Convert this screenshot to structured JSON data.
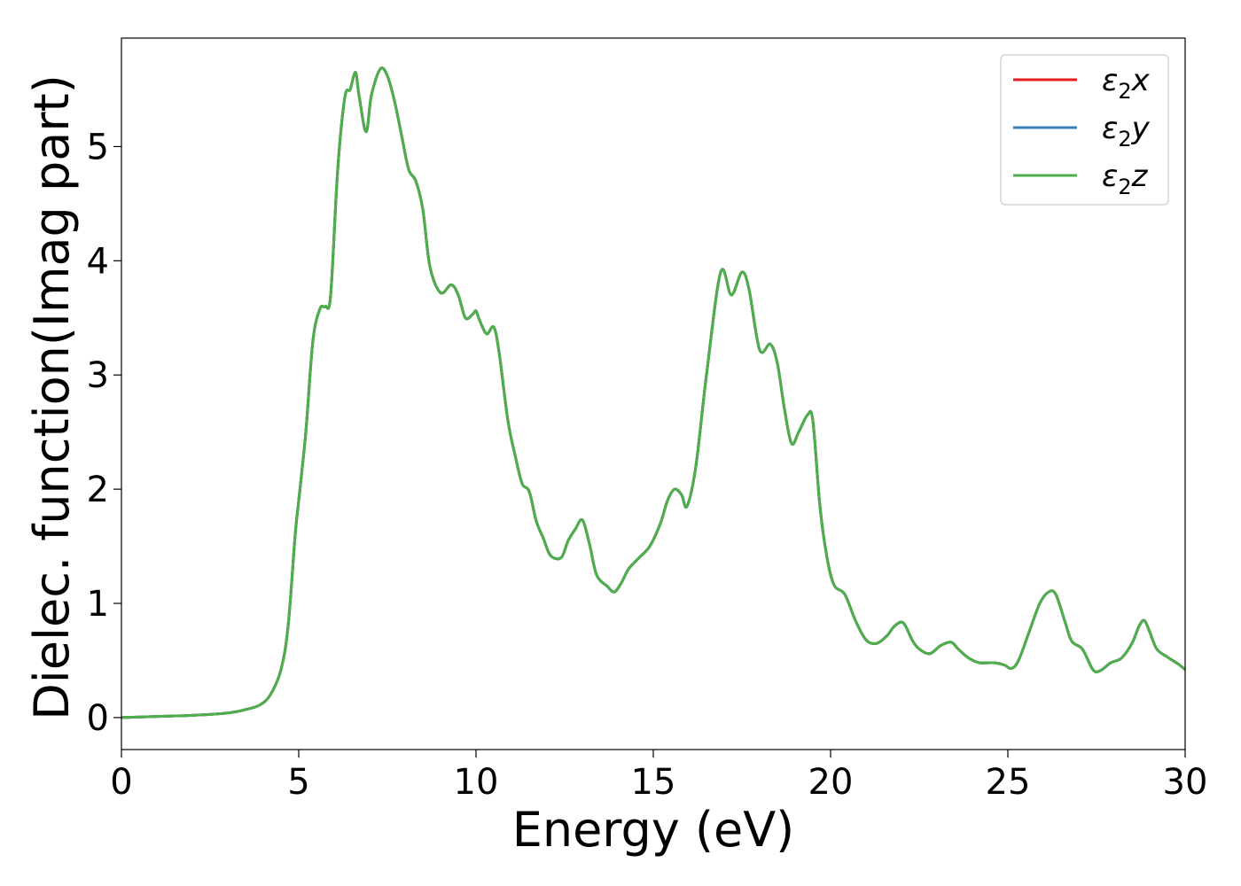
{
  "chart_data": {
    "type": "line",
    "title": "",
    "xlabel": "Energy (eV)",
    "ylabel": "Dielec. function(Imag part)",
    "xlim": [
      0,
      30
    ],
    "ylim": [
      -0.28,
      5.95
    ],
    "xticks": [
      0,
      5,
      10,
      15,
      20,
      25,
      30
    ],
    "yticks": [
      0,
      1,
      2,
      3,
      4,
      5
    ],
    "grid": false,
    "legend_position": "top-right",
    "x": [
      0,
      1,
      2,
      3,
      3.5,
      3.9,
      4.2,
      4.5,
      4.7,
      4.9,
      5.0,
      5.2,
      5.4,
      5.6,
      5.75,
      5.9,
      6.1,
      6.3,
      6.45,
      6.6,
      6.7,
      6.9,
      7.05,
      7.3,
      7.5,
      7.7,
      7.9,
      8.1,
      8.3,
      8.5,
      8.7,
      9.0,
      9.3,
      9.5,
      9.7,
      9.9,
      10.0,
      10.1,
      10.3,
      10.5,
      10.65,
      10.9,
      11.1,
      11.3,
      11.5,
      11.7,
      11.9,
      12.1,
      12.4,
      12.6,
      12.8,
      13.0,
      13.2,
      13.4,
      13.7,
      13.9,
      14.1,
      14.3,
      14.6,
      14.9,
      15.2,
      15.4,
      15.6,
      15.8,
      15.95,
      16.2,
      16.5,
      16.9,
      17.2,
      17.5,
      17.7,
      18.0,
      18.3,
      18.5,
      18.7,
      18.9,
      19.1,
      19.35,
      19.5,
      19.7,
      19.9,
      20.1,
      20.4,
      20.7,
      21.0,
      21.3,
      21.6,
      21.8,
      22.05,
      22.3,
      22.5,
      22.8,
      23.1,
      23.4,
      23.6,
      23.9,
      24.2,
      24.6,
      24.9,
      25.1,
      25.3,
      25.6,
      25.9,
      26.15,
      26.35,
      26.6,
      26.8,
      27.1,
      27.4,
      27.6,
      27.9,
      28.2,
      28.5,
      28.7,
      28.85,
      29.0,
      29.2,
      29.5,
      29.8,
      30.0
    ],
    "series": [
      {
        "name": "ε2x",
        "color": "#e41a1c",
        "values": [
          0,
          0.01,
          0.02,
          0.04,
          0.07,
          0.11,
          0.2,
          0.42,
          0.8,
          1.6,
          1.9,
          2.5,
          3.3,
          3.58,
          3.6,
          3.7,
          4.8,
          5.43,
          5.5,
          5.65,
          5.45,
          5.13,
          5.45,
          5.68,
          5.62,
          5.4,
          5.1,
          4.8,
          4.7,
          4.45,
          3.95,
          3.72,
          3.79,
          3.7,
          3.5,
          3.53,
          3.56,
          3.48,
          3.36,
          3.42,
          3.2,
          2.6,
          2.3,
          2.05,
          1.98,
          1.72,
          1.57,
          1.42,
          1.4,
          1.55,
          1.65,
          1.73,
          1.52,
          1.25,
          1.15,
          1.1,
          1.18,
          1.3,
          1.4,
          1.5,
          1.7,
          1.9,
          2.0,
          1.95,
          1.85,
          2.2,
          3.0,
          3.9,
          3.7,
          3.9,
          3.75,
          3.22,
          3.27,
          3.1,
          2.7,
          2.4,
          2.5,
          2.65,
          2.6,
          1.85,
          1.4,
          1.16,
          1.08,
          0.85,
          0.68,
          0.65,
          0.72,
          0.8,
          0.83,
          0.68,
          0.6,
          0.56,
          0.63,
          0.66,
          0.6,
          0.52,
          0.48,
          0.48,
          0.46,
          0.43,
          0.5,
          0.75,
          1.0,
          1.1,
          1.08,
          0.85,
          0.67,
          0.6,
          0.42,
          0.41,
          0.48,
          0.52,
          0.65,
          0.8,
          0.85,
          0.75,
          0.6,
          0.53,
          0.47,
          0.42
        ]
      },
      {
        "name": "ε2y",
        "color": "#377eb8",
        "values": [
          0,
          0.01,
          0.02,
          0.04,
          0.07,
          0.11,
          0.2,
          0.42,
          0.8,
          1.6,
          1.9,
          2.5,
          3.3,
          3.58,
          3.6,
          3.7,
          4.8,
          5.43,
          5.5,
          5.65,
          5.45,
          5.13,
          5.45,
          5.68,
          5.62,
          5.4,
          5.1,
          4.8,
          4.7,
          4.45,
          3.95,
          3.72,
          3.79,
          3.7,
          3.5,
          3.53,
          3.56,
          3.48,
          3.36,
          3.42,
          3.2,
          2.6,
          2.3,
          2.05,
          1.98,
          1.72,
          1.57,
          1.42,
          1.4,
          1.55,
          1.65,
          1.73,
          1.52,
          1.25,
          1.15,
          1.1,
          1.18,
          1.3,
          1.4,
          1.5,
          1.7,
          1.9,
          2.0,
          1.95,
          1.85,
          2.2,
          3.0,
          3.9,
          3.7,
          3.9,
          3.75,
          3.22,
          3.27,
          3.1,
          2.7,
          2.4,
          2.5,
          2.65,
          2.6,
          1.85,
          1.4,
          1.16,
          1.08,
          0.85,
          0.68,
          0.65,
          0.72,
          0.8,
          0.83,
          0.68,
          0.6,
          0.56,
          0.63,
          0.66,
          0.6,
          0.52,
          0.48,
          0.48,
          0.46,
          0.43,
          0.5,
          0.75,
          1.0,
          1.1,
          1.08,
          0.85,
          0.67,
          0.6,
          0.42,
          0.41,
          0.48,
          0.52,
          0.65,
          0.8,
          0.85,
          0.75,
          0.6,
          0.53,
          0.47,
          0.42
        ]
      },
      {
        "name": "ε2z",
        "color": "#4daf4a",
        "values": [
          0,
          0.01,
          0.02,
          0.04,
          0.07,
          0.11,
          0.2,
          0.42,
          0.8,
          1.6,
          1.9,
          2.5,
          3.3,
          3.58,
          3.6,
          3.7,
          4.8,
          5.43,
          5.5,
          5.65,
          5.45,
          5.13,
          5.45,
          5.68,
          5.62,
          5.4,
          5.1,
          4.8,
          4.7,
          4.45,
          3.95,
          3.72,
          3.79,
          3.7,
          3.5,
          3.53,
          3.56,
          3.48,
          3.36,
          3.42,
          3.2,
          2.6,
          2.3,
          2.05,
          1.98,
          1.72,
          1.57,
          1.42,
          1.4,
          1.55,
          1.65,
          1.73,
          1.52,
          1.25,
          1.15,
          1.1,
          1.18,
          1.3,
          1.4,
          1.5,
          1.7,
          1.9,
          2.0,
          1.95,
          1.85,
          2.2,
          3.0,
          3.9,
          3.7,
          3.9,
          3.75,
          3.22,
          3.27,
          3.1,
          2.7,
          2.4,
          2.5,
          2.65,
          2.6,
          1.85,
          1.4,
          1.16,
          1.08,
          0.85,
          0.68,
          0.65,
          0.72,
          0.8,
          0.83,
          0.68,
          0.6,
          0.56,
          0.63,
          0.66,
          0.6,
          0.52,
          0.48,
          0.48,
          0.46,
          0.43,
          0.5,
          0.75,
          1.0,
          1.1,
          1.08,
          0.85,
          0.67,
          0.6,
          0.42,
          0.41,
          0.48,
          0.52,
          0.65,
          0.8,
          0.85,
          0.75,
          0.6,
          0.53,
          0.47,
          0.42
        ]
      }
    ]
  }
}
